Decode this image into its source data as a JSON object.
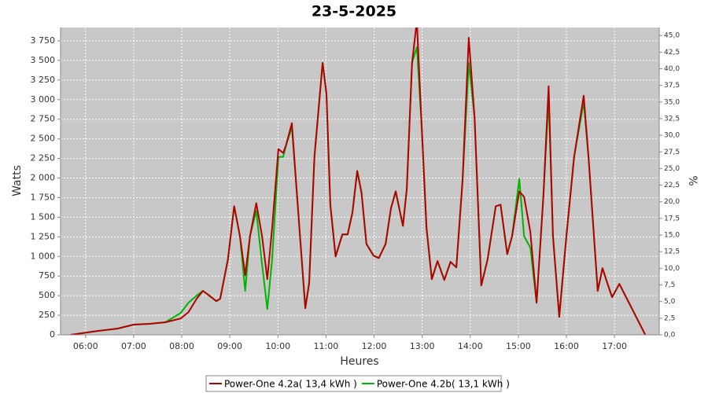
{
  "chart_data": {
    "type": "line",
    "title": "23-5-2025",
    "x_label": "Heures",
    "y_label": "Watts",
    "y2_label": "%",
    "xlim": [
      5.48,
      17.93
    ],
    "xticks": [
      {
        "value": 6,
        "label": "06:00"
      },
      {
        "value": 7,
        "label": "07:00"
      },
      {
        "value": 8,
        "label": "08:00"
      },
      {
        "value": 9,
        "label": "09:00"
      },
      {
        "value": 10,
        "label": "10:00"
      },
      {
        "value": 11,
        "label": "11:00"
      },
      {
        "value": 12,
        "label": "12:00"
      },
      {
        "value": 13,
        "label": "13:00"
      },
      {
        "value": 14,
        "label": "14:00"
      },
      {
        "value": 15,
        "label": "15:00"
      },
      {
        "value": 16,
        "label": "16:00"
      },
      {
        "value": 17,
        "label": "17:00"
      }
    ],
    "ylim": [
      0,
      3920
    ],
    "yticks": [
      0,
      250,
      500,
      750,
      {
        "value": 1000,
        "label": "1 000"
      },
      {
        "value": 1250,
        "label": "1 250"
      },
      {
        "value": 1500,
        "label": "1 500"
      },
      {
        "value": 1750,
        "label": "1 750"
      },
      {
        "value": 2000,
        "label": "2 000"
      },
      {
        "value": 2250,
        "label": "2 250"
      },
      {
        "value": 2500,
        "label": "2 500"
      },
      {
        "value": 2750,
        "label": "2 750"
      },
      {
        "value": 3000,
        "label": "3 000"
      },
      {
        "value": 3250,
        "label": "3 250"
      },
      {
        "value": 3500,
        "label": "3 500"
      },
      {
        "value": 3750,
        "label": "3 750"
      }
    ],
    "y2lim": [
      0,
      46.2
    ],
    "y2ticks": [
      {
        "value": 0,
        "label": "0,0"
      },
      {
        "value": 2.5,
        "label": "2,5"
      },
      {
        "value": 5,
        "label": "5,0"
      },
      {
        "value": 7.5,
        "label": "7,5"
      },
      {
        "value": 10,
        "label": "10,0"
      },
      {
        "value": 12.5,
        "label": "12,5"
      },
      {
        "value": 15,
        "label": "15,0"
      },
      {
        "value": 17.5,
        "label": "17,5"
      },
      {
        "value": 20,
        "label": "20,0"
      },
      {
        "value": 22.5,
        "label": "22,5"
      },
      {
        "value": 25,
        "label": "25,0"
      },
      {
        "value": 27.5,
        "label": "27,5"
      },
      {
        "value": 30,
        "label": "30,0"
      },
      {
        "value": 32.5,
        "label": "32,5"
      },
      {
        "value": 35,
        "label": "35,0"
      },
      {
        "value": 37.5,
        "label": "37,5"
      },
      {
        "value": 40,
        "label": "40,0"
      },
      {
        "value": 42.5,
        "label": "42,5"
      },
      {
        "value": 45,
        "label": "45,0"
      }
    ],
    "grid": true,
    "x": [
      5.69,
      6.26,
      6.67,
      7.0,
      7.33,
      7.66,
      7.98,
      8.14,
      8.31,
      8.44,
      8.55,
      8.72,
      8.8,
      8.96,
      9.09,
      9.21,
      9.32,
      9.42,
      9.55,
      9.67,
      9.78,
      9.88,
      10.01,
      10.11,
      10.17,
      10.29,
      10.4,
      10.57,
      10.65,
      10.76,
      10.93,
      11.01,
      11.09,
      11.2,
      11.34,
      11.45,
      11.55,
      11.65,
      11.74,
      11.84,
      11.99,
      12.1,
      12.24,
      12.35,
      12.45,
      12.6,
      12.68,
      12.79,
      12.89,
      12.99,
      13.09,
      13.2,
      13.32,
      13.46,
      13.59,
      13.71,
      13.84,
      13.97,
      14.09,
      14.23,
      14.36,
      14.53,
      14.63,
      14.77,
      14.87,
      15.02,
      15.12,
      15.25,
      15.38,
      15.52,
      15.63,
      15.72,
      15.85,
      16.0,
      16.16,
      16.36,
      16.46,
      16.65,
      16.75,
      16.85,
      16.95,
      17.1,
      17.64
    ],
    "series": [
      {
        "name": "Power-One 4.2b( 13,1 kWh )",
        "color": "#00b400",
        "values": [
          0,
          50,
          80,
          130,
          140,
          160,
          280,
          410,
          500,
          560,
          510,
          430,
          460,
          960,
          1640,
          1260,
          560,
          1260,
          1580,
          900,
          330,
          960,
          2270,
          2270,
          2420,
          2650,
          1760,
          340,
          660,
          2270,
          3470,
          3070,
          1660,
          1000,
          1280,
          1280,
          1560,
          2090,
          1810,
          1160,
          1010,
          980,
          1160,
          1610,
          1830,
          1390,
          1860,
          3470,
          3670,
          2670,
          1360,
          710,
          940,
          700,
          930,
          860,
          1970,
          3470,
          2770,
          630,
          960,
          1640,
          1660,
          1030,
          1260,
          1990,
          1260,
          1110,
          410,
          1760,
          3020,
          1260,
          230,
          1260,
          2270,
          2970,
          2270,
          560,
          850,
          660,
          480,
          650,
          0
        ]
      },
      {
        "name": "Power-One 4.2a( 13,4 kWh )",
        "color": "#b40000",
        "values": [
          0,
          50,
          80,
          130,
          140,
          160,
          210,
          290,
          460,
          560,
          510,
          430,
          460,
          960,
          1640,
          1260,
          760,
          1260,
          1680,
          1260,
          710,
          1360,
          2370,
          2320,
          2420,
          2700,
          1760,
          340,
          660,
          2270,
          3470,
          3070,
          1660,
          1000,
          1280,
          1280,
          1560,
          2090,
          1810,
          1160,
          1010,
          980,
          1160,
          1610,
          1830,
          1390,
          1860,
          3470,
          4000,
          2670,
          1360,
          710,
          940,
          700,
          930,
          860,
          1970,
          3790,
          2770,
          630,
          960,
          1640,
          1660,
          1030,
          1260,
          1830,
          1760,
          1310,
          410,
          1760,
          3170,
          1260,
          230,
          1260,
          2270,
          3050,
          2270,
          560,
          850,
          660,
          480,
          650,
          0
        ]
      }
    ],
    "legend_order": [
      1,
      0
    ]
  }
}
